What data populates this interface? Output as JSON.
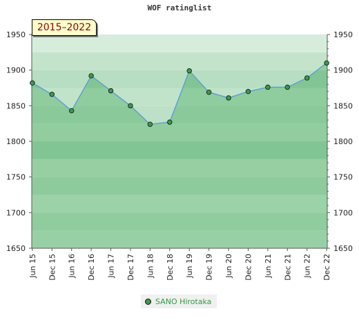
{
  "chart_data": {
    "type": "area",
    "title": "WOF ratinglist",
    "period_label": "2015–2022",
    "categories": [
      "Jun 15",
      "Dec 15",
      "Jun 16",
      "Dec 16",
      "Jun 17",
      "Dec 17",
      "Jun 18",
      "Dec 18",
      "Jun 19",
      "Dec 19",
      "Jun 20",
      "Dec 20",
      "Jun 21",
      "Dec 21",
      "Jun 22",
      "Dec 22"
    ],
    "series": [
      {
        "name": "SANO Hirotaka",
        "values": [
          1882,
          1866,
          1843,
          1892,
          1871,
          1850,
          1824,
          1827,
          1899,
          1869,
          1861,
          1870,
          1876,
          1876,
          1889,
          1910
        ]
      }
    ],
    "ylim": [
      1650,
      1950
    ],
    "yticks": [
      1650,
      1700,
      1750,
      1800,
      1850,
      1900,
      1950
    ],
    "y_axes": "both",
    "legend_position": "bottom-center",
    "colors": {
      "line": "#5a9ed6",
      "area": "#8fcc9e",
      "marker": "#3a9a4a",
      "legend_text": "#2e9e3e",
      "period_bg": "#ffffcc",
      "period_text": "#8b0000"
    }
  }
}
